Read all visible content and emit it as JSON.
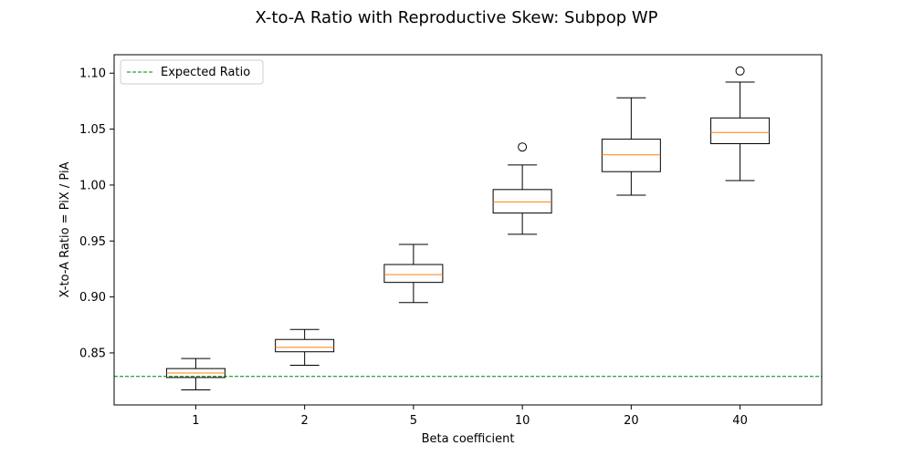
{
  "chart_data": {
    "type": "box",
    "title": "X-to-A Ratio with Reproductive Skew: Subpop WP",
    "xlabel": "Beta coefficient",
    "ylabel": "X-to-A Ratio = PiX / PiA",
    "categories": [
      "1",
      "2",
      "5",
      "10",
      "20",
      "40"
    ],
    "ylim": [
      0.8035,
      1.1165
    ],
    "yticks": [
      0.85,
      0.9,
      0.95,
      1.0,
      1.05,
      1.1
    ],
    "ytick_labels": [
      "0.85",
      "0.90",
      "0.95",
      "1.00",
      "1.05",
      "1.10"
    ],
    "boxes": [
      {
        "category": "1",
        "whisker_low": 0.817,
        "q1": 0.828,
        "median": 0.832,
        "q3": 0.836,
        "whisker_high": 0.845,
        "outliers": []
      },
      {
        "category": "2",
        "whisker_low": 0.839,
        "q1": 0.851,
        "median": 0.855,
        "q3": 0.862,
        "whisker_high": 0.871,
        "outliers": []
      },
      {
        "category": "5",
        "whisker_low": 0.895,
        "q1": 0.913,
        "median": 0.92,
        "q3": 0.929,
        "whisker_high": 0.947,
        "outliers": []
      },
      {
        "category": "10",
        "whisker_low": 0.956,
        "q1": 0.975,
        "median": 0.985,
        "q3": 0.996,
        "whisker_high": 1.018,
        "outliers": [
          1.034
        ]
      },
      {
        "category": "20",
        "whisker_low": 0.991,
        "q1": 1.012,
        "median": 1.027,
        "q3": 1.041,
        "whisker_high": 1.078,
        "outliers": []
      },
      {
        "category": "40",
        "whisker_low": 1.004,
        "q1": 1.037,
        "median": 1.047,
        "q3": 1.06,
        "whisker_high": 1.092,
        "outliers": [
          1.102
        ]
      }
    ],
    "reference_line": {
      "name": "Expected Ratio",
      "y": 0.829,
      "style": "dashed",
      "color": "#008000"
    },
    "legend": {
      "placement": "top-left",
      "entries": [
        "Expected Ratio"
      ]
    },
    "grid": false,
    "colors": {
      "box": "#000000",
      "median": "#ff7f0e",
      "reference": "#008000"
    }
  }
}
